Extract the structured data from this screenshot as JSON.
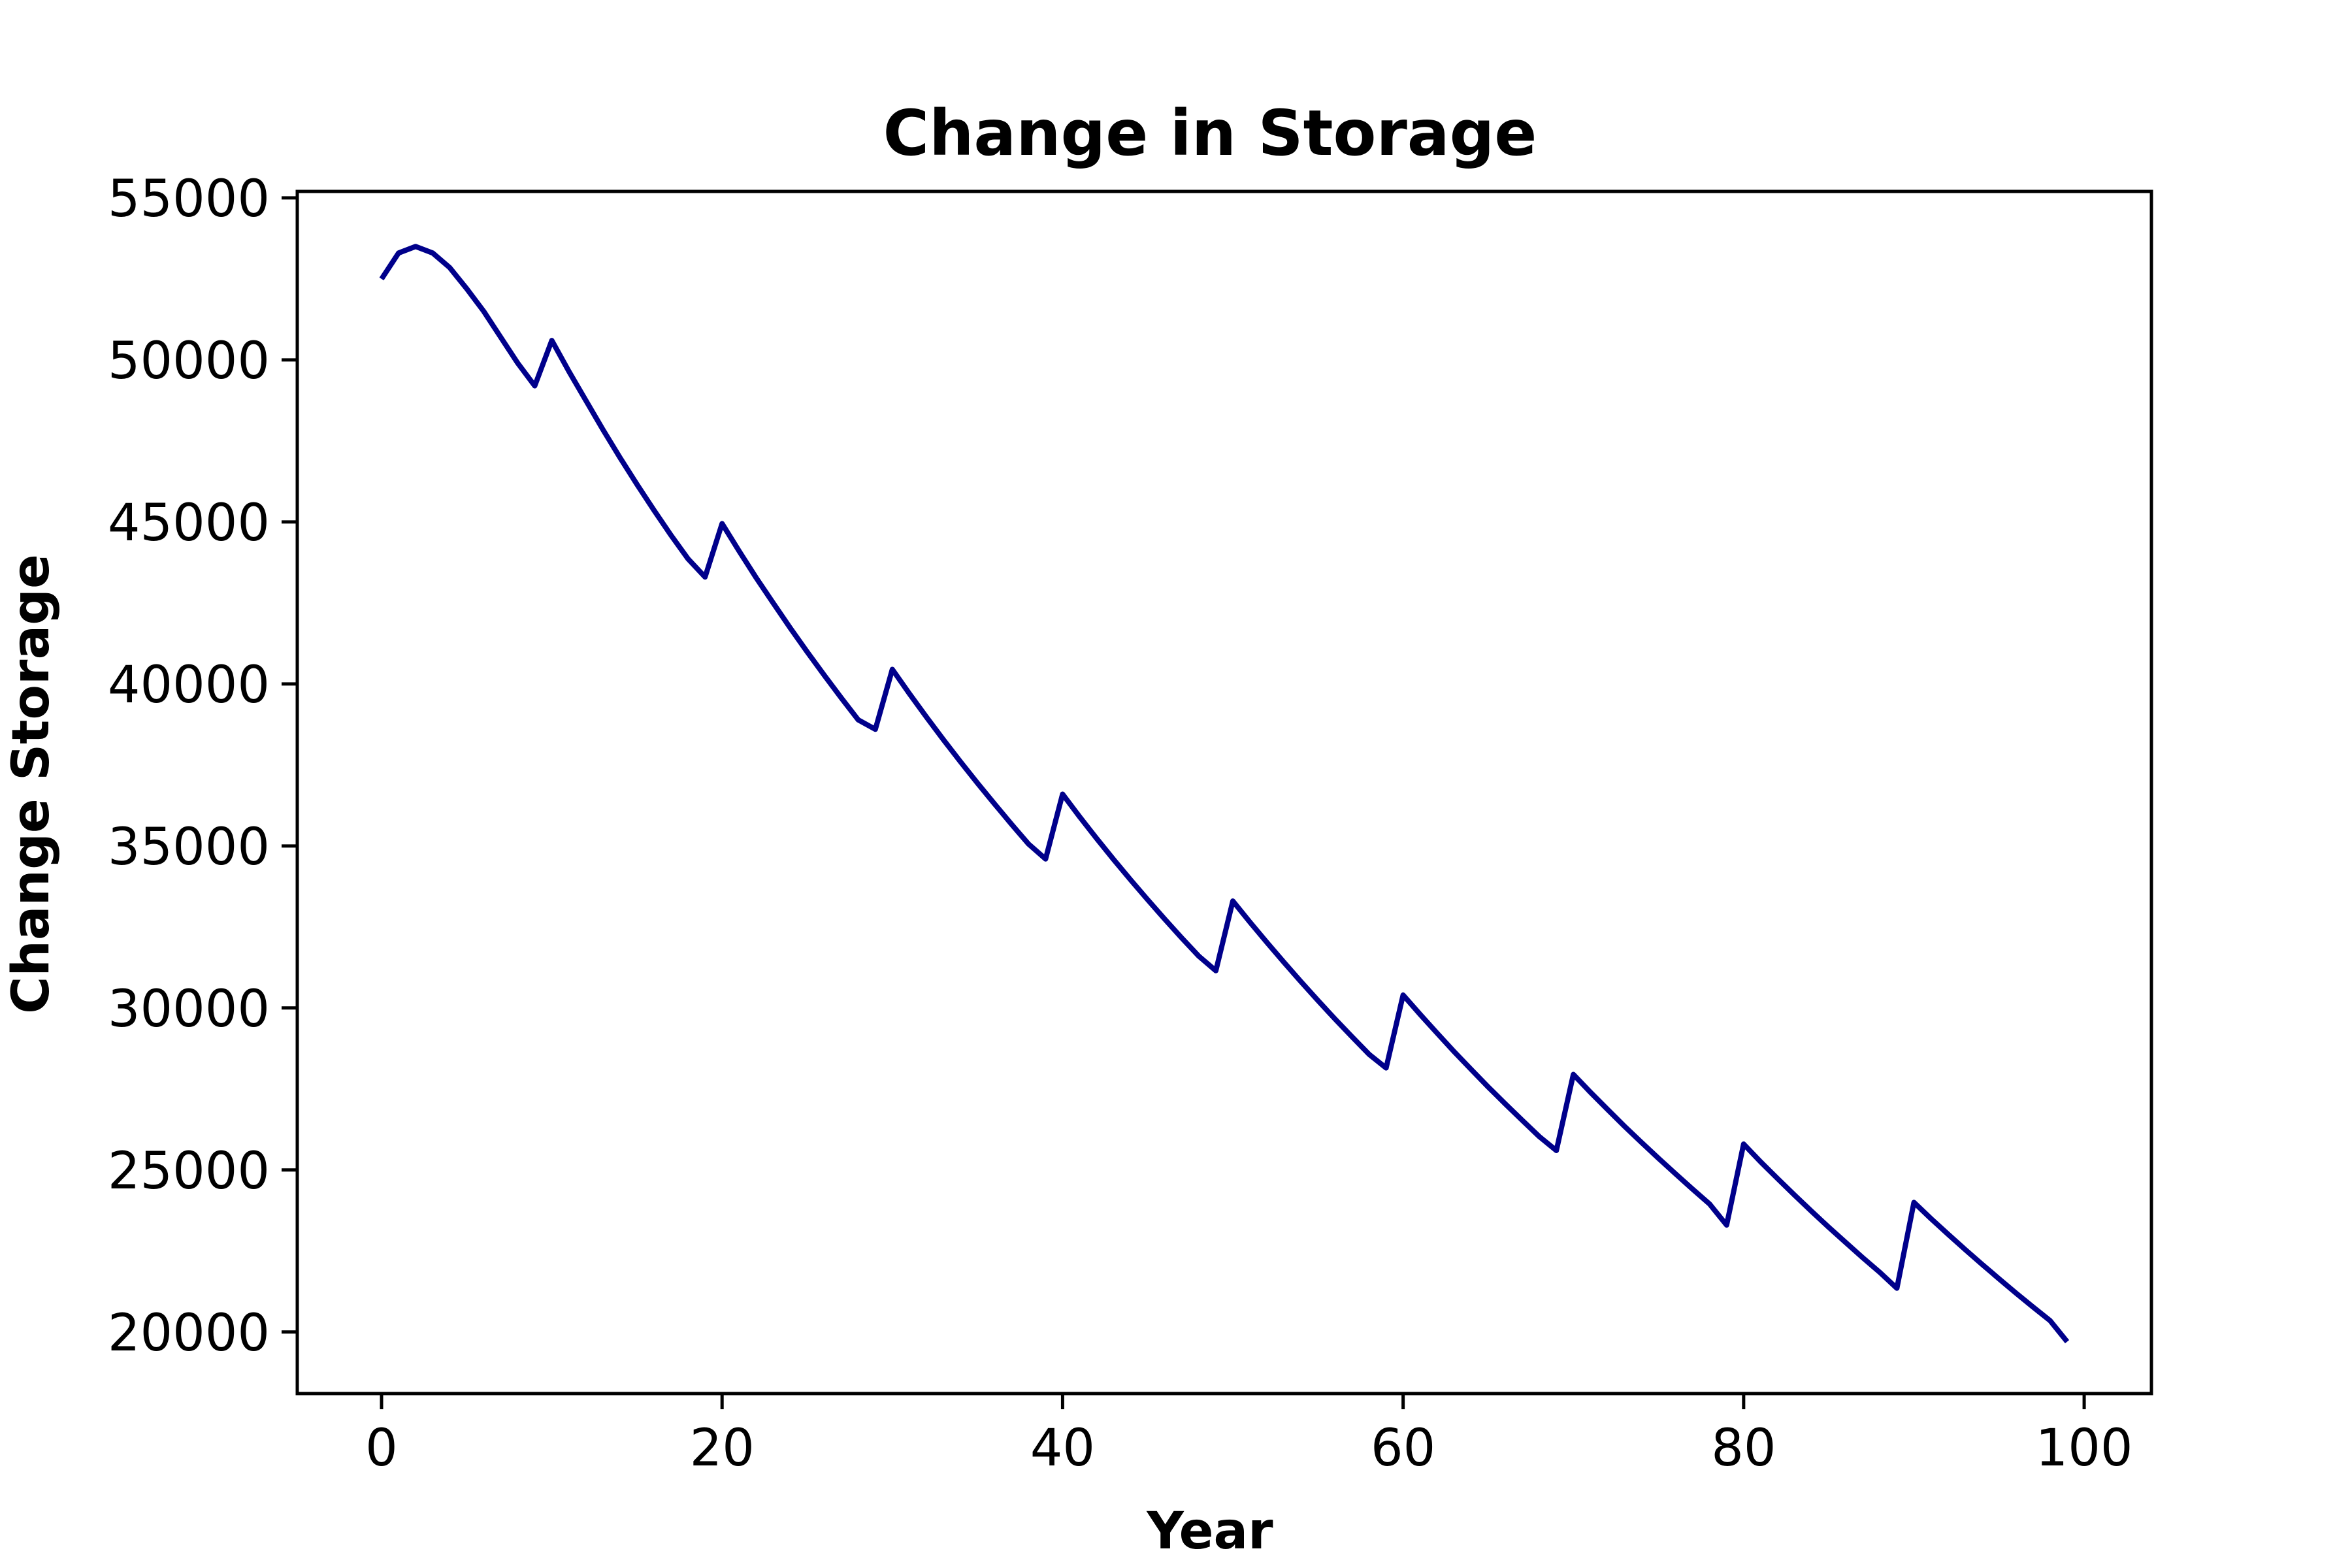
{
  "chart_data": {
    "type": "line",
    "title": "Change in Storage",
    "xlabel": "Year",
    "ylabel": "Change Storage",
    "xlim": [
      -4.95,
      103.95
    ],
    "ylim": [
      18100,
      55200
    ],
    "x_ticks": [
      0,
      20,
      40,
      60,
      80,
      100
    ],
    "y_ticks": [
      20000,
      25000,
      30000,
      35000,
      40000,
      45000,
      50000,
      55000
    ],
    "x_tick_labels": [
      "0",
      "20",
      "40",
      "60",
      "80",
      "100"
    ],
    "y_tick_labels": [
      "20000",
      "25000",
      "30000",
      "35000",
      "40000",
      "45000",
      "50000",
      "55000"
    ],
    "grid": false,
    "line_color": "#00008b",
    "series": [
      {
        "x": [
          0,
          1,
          2,
          3,
          4,
          5,
          6,
          7,
          8,
          9,
          10,
          11,
          12,
          13,
          14,
          15,
          16,
          17,
          18,
          19,
          20,
          21,
          22,
          23,
          24,
          25,
          26,
          27,
          28,
          29,
          30,
          31,
          32,
          33,
          34,
          35,
          36,
          37,
          38,
          39,
          40,
          41,
          42,
          43,
          44,
          45,
          46,
          47,
          48,
          49,
          50,
          51,
          52,
          53,
          54,
          55,
          56,
          57,
          58,
          59,
          60,
          61,
          62,
          63,
          64,
          65,
          66,
          67,
          68,
          69,
          70,
          71,
          72,
          73,
          74,
          75,
          76,
          77,
          78,
          79,
          80,
          81,
          82,
          83,
          84,
          85,
          86,
          87,
          88,
          89,
          90,
          91,
          92,
          93,
          94,
          95,
          96,
          97,
          98,
          99
        ],
        "values": [
          52500,
          53300,
          53500,
          53300,
          52850,
          52200,
          51500,
          50700,
          49900,
          49200,
          50600,
          49650,
          48750,
          47850,
          46990,
          46160,
          45360,
          44590,
          43860,
          43300,
          44950,
          44100,
          43280,
          42500,
          41730,
          40990,
          40270,
          39570,
          38890,
          38600,
          40450,
          39700,
          38980,
          38280,
          37600,
          36940,
          36300,
          35670,
          35060,
          34600,
          36600,
          35900,
          35230,
          34580,
          33950,
          33340,
          32740,
          32160,
          31600,
          31150,
          33300,
          32650,
          32020,
          31410,
          30810,
          30230,
          29660,
          29110,
          28570,
          28150,
          30400,
          29800,
          29220,
          28650,
          28100,
          27560,
          27040,
          26530,
          26030,
          25600,
          27950,
          27400,
          26870,
          26350,
          25850,
          25360,
          24880,
          24410,
          23950,
          23300,
          25800,
          25250,
          24730,
          24220,
          23720,
          23230,
          22760,
          22290,
          21840,
          21350,
          24000,
          23500,
          23020,
          22550,
          22090,
          21640,
          21200,
          20770,
          20350,
          19700
        ]
      }
    ]
  }
}
